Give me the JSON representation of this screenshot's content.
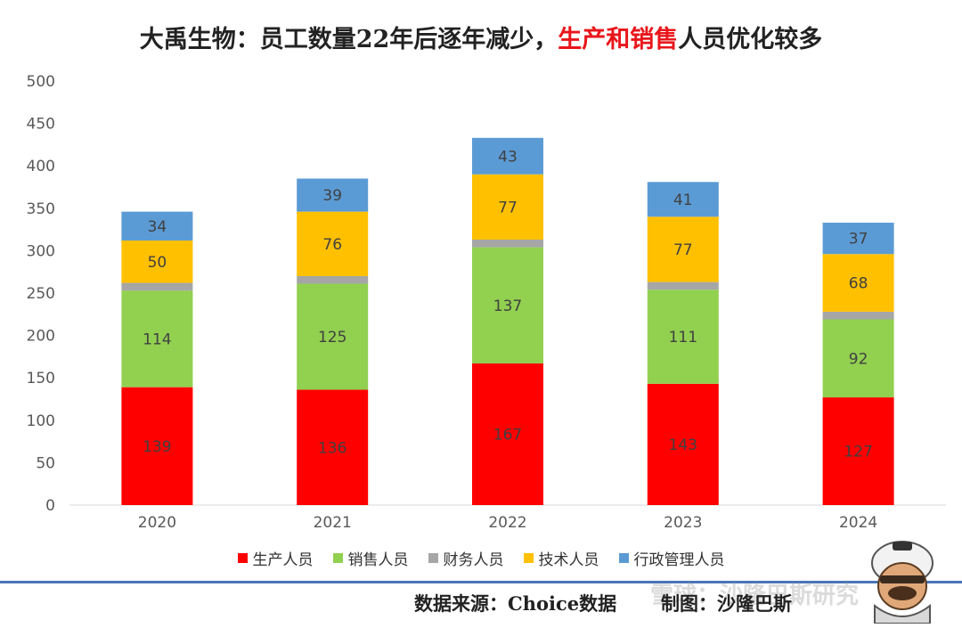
{
  "title": {
    "prefix": "大禹生物：员工数量22年后逐年减少，",
    "highlight": "生产和销售",
    "suffix": "人员优化较多"
  },
  "footer": {
    "source": "数据来源：Choice数据",
    "credit": "制图：沙隆巴斯",
    "watermark": "雪球：沙隆巴斯研究"
  },
  "colors": {
    "production": "#ff0000",
    "sales": "#92d050",
    "finance": "#a6a6a6",
    "technical": "#ffc000",
    "admin": "#5b9bd5"
  },
  "chart_data": {
    "type": "bar",
    "stacked": true,
    "categories": [
      "2020",
      "2021",
      "2022",
      "2023",
      "2024"
    ],
    "series": [
      {
        "name": "生产人员",
        "key": "production",
        "values": [
          139,
          136,
          167,
          143,
          127
        ],
        "show_labels": true
      },
      {
        "name": "销售人员",
        "key": "sales",
        "values": [
          114,
          125,
          137,
          111,
          92
        ],
        "show_labels": true
      },
      {
        "name": "财务人员",
        "key": "finance",
        "values": [
          9,
          9,
          9,
          9,
          9
        ],
        "show_labels": false
      },
      {
        "name": "技术人员",
        "key": "technical",
        "values": [
          50,
          76,
          77,
          77,
          68
        ],
        "show_labels": true
      },
      {
        "name": "行政管理人员",
        "key": "admin",
        "values": [
          34,
          39,
          43,
          41,
          37
        ],
        "show_labels": true
      }
    ],
    "ylim": [
      0,
      500
    ],
    "yticks": [
      0,
      50,
      100,
      150,
      200,
      250,
      300,
      350,
      400,
      450,
      500
    ],
    "grid": false,
    "legend": "bottom"
  }
}
